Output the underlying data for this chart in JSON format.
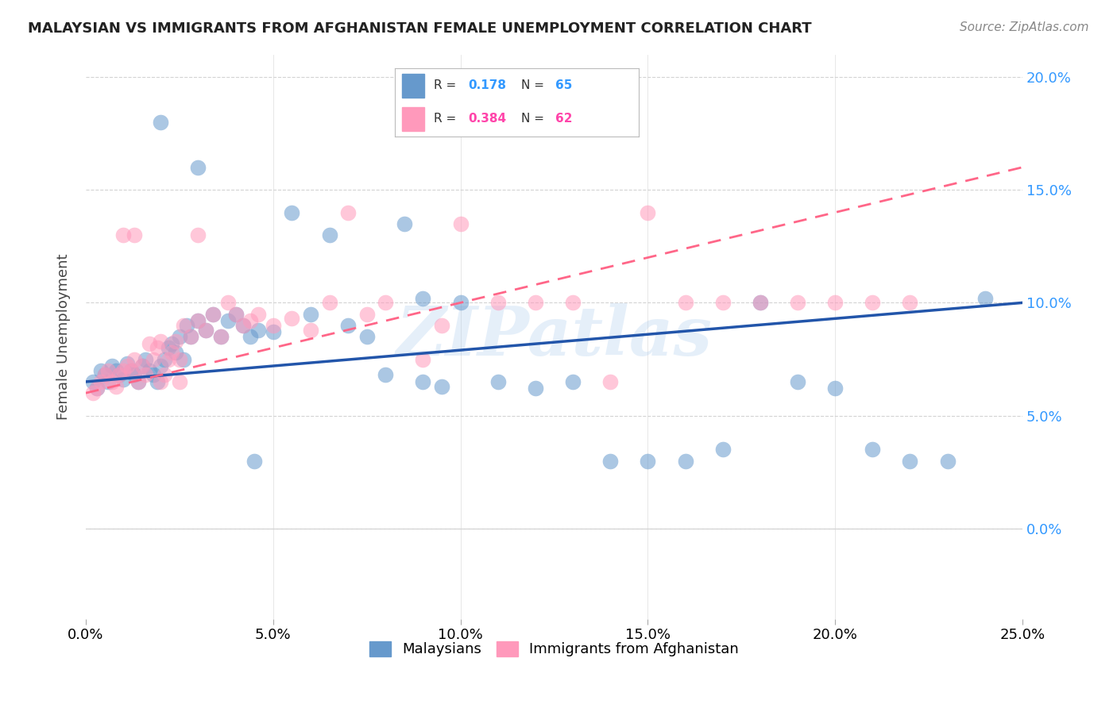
{
  "title": "MALAYSIAN VS IMMIGRANTS FROM AFGHANISTAN FEMALE UNEMPLOYMENT CORRELATION CHART",
  "source": "Source: ZipAtlas.com",
  "ylabel": "Female Unemployment",
  "legend_label1": "Malaysians",
  "legend_label2": "Immigrants from Afghanistan",
  "R1": "0.178",
  "N1": "65",
  "R2": "0.384",
  "N2": "62",
  "color1": "#6699CC",
  "color2": "#FF99BB",
  "trendline1_color": "#2255AA",
  "trendline2_color": "#FF6688",
  "xlim": [
    0.0,
    0.25
  ],
  "ylim": [
    -0.04,
    0.21
  ],
  "xticks": [
    0.0,
    0.05,
    0.1,
    0.15,
    0.2,
    0.25
  ],
  "yticks": [
    0.0,
    0.05,
    0.1,
    0.15,
    0.2
  ],
  "xtick_labels": [
    "0.0%",
    "5.0%",
    "10.0%",
    "15.0%",
    "20.0%",
    "25.0%"
  ],
  "ytick_labels": [
    "0.0%",
    "5.0%",
    "10.0%",
    "15.0%",
    "20.0%"
  ],
  "background_color": "#FFFFFF",
  "watermark": "ZIPatlas",
  "blue_x": [
    0.002,
    0.003,
    0.004,
    0.005,
    0.006,
    0.007,
    0.008,
    0.009,
    0.01,
    0.011,
    0.012,
    0.013,
    0.014,
    0.015,
    0.016,
    0.017,
    0.018,
    0.019,
    0.02,
    0.021,
    0.022,
    0.023,
    0.024,
    0.025,
    0.026,
    0.027,
    0.028,
    0.03,
    0.032,
    0.034,
    0.036,
    0.038,
    0.04,
    0.042,
    0.044,
    0.046,
    0.05,
    0.055,
    0.06,
    0.065,
    0.07,
    0.075,
    0.08,
    0.085,
    0.09,
    0.095,
    0.1,
    0.11,
    0.12,
    0.13,
    0.14,
    0.15,
    0.16,
    0.17,
    0.18,
    0.19,
    0.2,
    0.21,
    0.22,
    0.23,
    0.24,
    0.09,
    0.02,
    0.03,
    0.045
  ],
  "blue_y": [
    0.065,
    0.062,
    0.07,
    0.068,
    0.065,
    0.072,
    0.07,
    0.068,
    0.066,
    0.073,
    0.07,
    0.068,
    0.065,
    0.072,
    0.075,
    0.07,
    0.068,
    0.065,
    0.072,
    0.075,
    0.08,
    0.082,
    0.078,
    0.085,
    0.075,
    0.09,
    0.085,
    0.092,
    0.088,
    0.095,
    0.085,
    0.092,
    0.095,
    0.09,
    0.085,
    0.088,
    0.087,
    0.14,
    0.095,
    0.13,
    0.09,
    0.085,
    0.068,
    0.135,
    0.065,
    0.063,
    0.1,
    0.065,
    0.062,
    0.065,
    0.03,
    0.03,
    0.03,
    0.035,
    0.1,
    0.065,
    0.062,
    0.035,
    0.03,
    0.03,
    0.102,
    0.102,
    0.18,
    0.16,
    0.03
  ],
  "pink_x": [
    0.002,
    0.003,
    0.004,
    0.005,
    0.006,
    0.007,
    0.008,
    0.009,
    0.01,
    0.011,
    0.012,
    0.013,
    0.014,
    0.015,
    0.016,
    0.017,
    0.018,
    0.019,
    0.02,
    0.021,
    0.022,
    0.023,
    0.024,
    0.025,
    0.026,
    0.028,
    0.03,
    0.032,
    0.034,
    0.036,
    0.038,
    0.04,
    0.042,
    0.044,
    0.046,
    0.05,
    0.055,
    0.06,
    0.065,
    0.07,
    0.075,
    0.08,
    0.09,
    0.095,
    0.1,
    0.11,
    0.12,
    0.13,
    0.14,
    0.15,
    0.16,
    0.17,
    0.18,
    0.19,
    0.2,
    0.21,
    0.22,
    0.03,
    0.01,
    0.013,
    0.02,
    0.025
  ],
  "pink_y": [
    0.06,
    0.062,
    0.065,
    0.068,
    0.07,
    0.065,
    0.063,
    0.068,
    0.07,
    0.072,
    0.07,
    0.075,
    0.065,
    0.072,
    0.068,
    0.082,
    0.075,
    0.08,
    0.083,
    0.068,
    0.075,
    0.078,
    0.083,
    0.075,
    0.09,
    0.085,
    0.092,
    0.088,
    0.095,
    0.085,
    0.1,
    0.095,
    0.09,
    0.092,
    0.095,
    0.09,
    0.093,
    0.088,
    0.1,
    0.14,
    0.095,
    0.1,
    0.075,
    0.09,
    0.135,
    0.1,
    0.1,
    0.1,
    0.065,
    0.14,
    0.1,
    0.1,
    0.1,
    0.1,
    0.1,
    0.1,
    0.1,
    0.13,
    0.13,
    0.13,
    0.065,
    0.065
  ]
}
